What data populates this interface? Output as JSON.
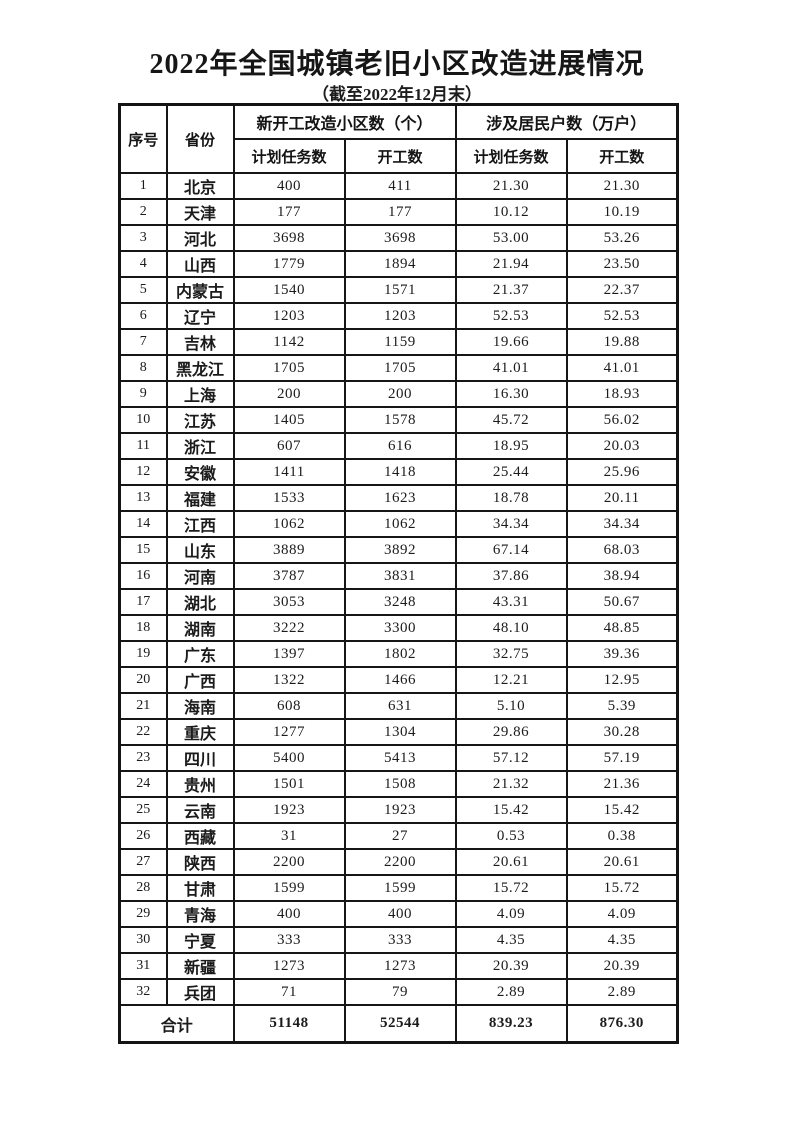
{
  "title": "2022年全国城镇老旧小区改造进展情况",
  "subtitle": "（截至2022年12月末）",
  "table": {
    "headers": {
      "index": "序号",
      "province": "省份",
      "group_new_start": "新开工改造小区数（个）",
      "group_households": "涉及居民户数（万户）",
      "plan_label_1": "计划任务数",
      "start_label_1": "开工数",
      "plan_label_2": "计划任务数",
      "start_label_2": "开工数"
    },
    "rows": [
      [
        "1",
        "北京",
        "400",
        "411",
        "21.30",
        "21.30"
      ],
      [
        "2",
        "天津",
        "177",
        "177",
        "10.12",
        "10.19"
      ],
      [
        "3",
        "河北",
        "3698",
        "3698",
        "53.00",
        "53.26"
      ],
      [
        "4",
        "山西",
        "1779",
        "1894",
        "21.94",
        "23.50"
      ],
      [
        "5",
        "内蒙古",
        "1540",
        "1571",
        "21.37",
        "22.37"
      ],
      [
        "6",
        "辽宁",
        "1203",
        "1203",
        "52.53",
        "52.53"
      ],
      [
        "7",
        "吉林",
        "1142",
        "1159",
        "19.66",
        "19.88"
      ],
      [
        "8",
        "黑龙江",
        "1705",
        "1705",
        "41.01",
        "41.01"
      ],
      [
        "9",
        "上海",
        "200",
        "200",
        "16.30",
        "18.93"
      ],
      [
        "10",
        "江苏",
        "1405",
        "1578",
        "45.72",
        "56.02"
      ],
      [
        "11",
        "浙江",
        "607",
        "616",
        "18.95",
        "20.03"
      ],
      [
        "12",
        "安徽",
        "1411",
        "1418",
        "25.44",
        "25.96"
      ],
      [
        "13",
        "福建",
        "1533",
        "1623",
        "18.78",
        "20.11"
      ],
      [
        "14",
        "江西",
        "1062",
        "1062",
        "34.34",
        "34.34"
      ],
      [
        "15",
        "山东",
        "3889",
        "3892",
        "67.14",
        "68.03"
      ],
      [
        "16",
        "河南",
        "3787",
        "3831",
        "37.86",
        "38.94"
      ],
      [
        "17",
        "湖北",
        "3053",
        "3248",
        "43.31",
        "50.67"
      ],
      [
        "18",
        "湖南",
        "3222",
        "3300",
        "48.10",
        "48.85"
      ],
      [
        "19",
        "广东",
        "1397",
        "1802",
        "32.75",
        "39.36"
      ],
      [
        "20",
        "广西",
        "1322",
        "1466",
        "12.21",
        "12.95"
      ],
      [
        "21",
        "海南",
        "608",
        "631",
        "5.10",
        "5.39"
      ],
      [
        "22",
        "重庆",
        "1277",
        "1304",
        "29.86",
        "30.28"
      ],
      [
        "23",
        "四川",
        "5400",
        "5413",
        "57.12",
        "57.19"
      ],
      [
        "24",
        "贵州",
        "1501",
        "1508",
        "21.32",
        "21.36"
      ],
      [
        "25",
        "云南",
        "1923",
        "1923",
        "15.42",
        "15.42"
      ],
      [
        "26",
        "西藏",
        "31",
        "27",
        "0.53",
        "0.38"
      ],
      [
        "27",
        "陕西",
        "2200",
        "2200",
        "20.61",
        "20.61"
      ],
      [
        "28",
        "甘肃",
        "1599",
        "1599",
        "15.72",
        "15.72"
      ],
      [
        "29",
        "青海",
        "400",
        "400",
        "4.09",
        "4.09"
      ],
      [
        "30",
        "宁夏",
        "333",
        "333",
        "4.35",
        "4.35"
      ],
      [
        "31",
        "新疆",
        "1273",
        "1273",
        "20.39",
        "20.39"
      ],
      [
        "32",
        "兵团",
        "71",
        "79",
        "2.89",
        "2.89"
      ]
    ],
    "total": {
      "label": "合计",
      "values": [
        "51148",
        "52544",
        "839.23",
        "876.30"
      ]
    }
  }
}
